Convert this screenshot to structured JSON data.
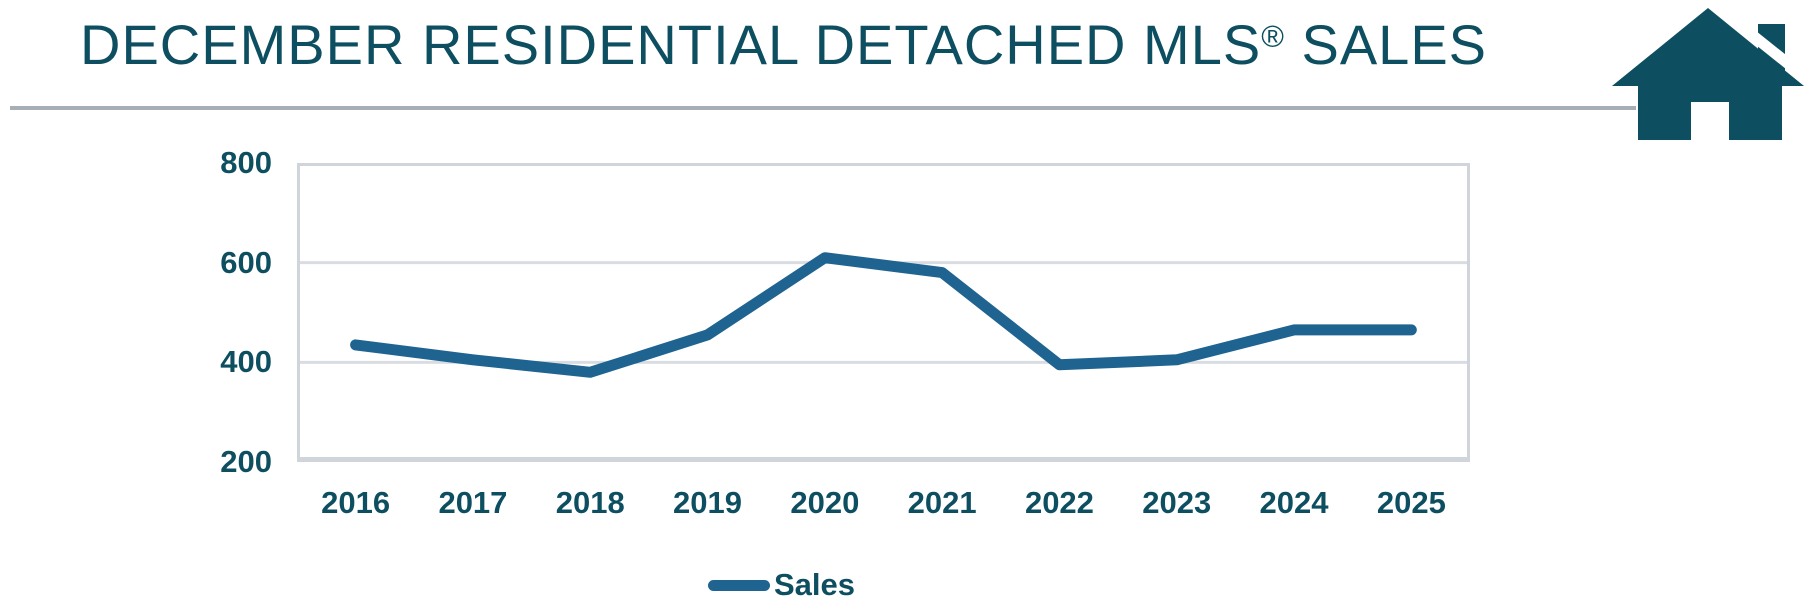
{
  "header": {
    "title_main": "DECEMBER RESIDENTIAL DETACHED MLS",
    "title_registered": "®",
    "title_suffix": " SALES"
  },
  "icons": {
    "house": "house-icon"
  },
  "colors": {
    "title_teal": "#0d4f60",
    "line_blue": "#1f6390",
    "gridline": "#d9dde2",
    "plot_border": "#cfd5da",
    "rule_gray": "#a7afb6"
  },
  "chart_data": {
    "type": "line",
    "title": "DECEMBER RESIDENTIAL DETACHED MLS® SALES",
    "categories": [
      "2016",
      "2017",
      "2018",
      "2019",
      "2020",
      "2021",
      "2022",
      "2023",
      "2024",
      "2025"
    ],
    "series": [
      {
        "name": "Sales",
        "values": [
          435,
          405,
          380,
          455,
          610,
          580,
          395,
          405,
          465,
          465
        ]
      }
    ],
    "ylim": [
      200,
      800
    ],
    "yticks": [
      800,
      600,
      400,
      200
    ],
    "grid": true,
    "legend_position": "bottom",
    "legend_label": "Sales"
  }
}
